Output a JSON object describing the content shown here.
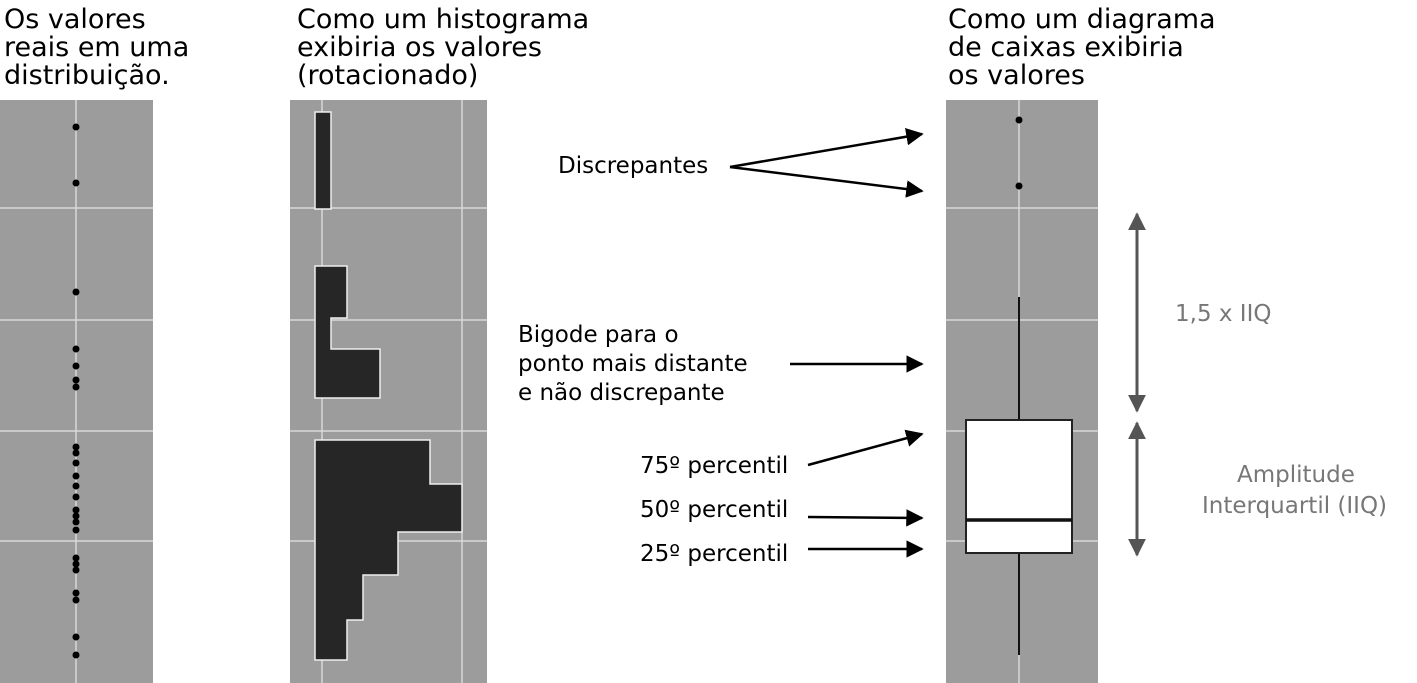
{
  "panels": [
    {
      "title_lines": [
        "Os valores",
        "reais em uma",
        "distribuição."
      ]
    },
    {
      "title_lines": [
        "Como um histograma",
        "exibiria os valores",
        "(rotacionado)"
      ]
    },
    {
      "title_lines": [
        "Como um diagrama",
        "de caixas exibiria",
        "os valores"
      ]
    }
  ],
  "annotations": {
    "outliers": "Discrepantes",
    "whisker_lines": [
      "Bigode para o",
      "ponto mais distante",
      "e não discrepante"
    ],
    "p75": "75º percentil",
    "p50": "50º percentil",
    "p25": "25º percentil",
    "range": "1,5 x IIQ",
    "iqr_lines": [
      "Amplitude",
      "Interquartil (IIQ)"
    ]
  }
}
